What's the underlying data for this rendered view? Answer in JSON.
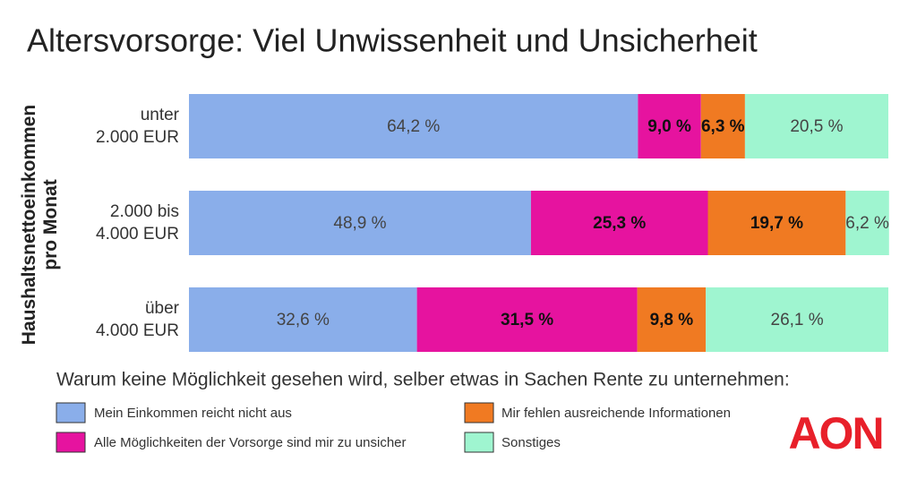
{
  "chart_data": {
    "type": "stacked-bar-horizontal",
    "title": "Altersvorsorge: Viel Unwissenheit und Unsicherheit",
    "y_label": "Haushaltsnettoeinkommen\npro Monat",
    "categories": [
      "unter\n2.000 EUR",
      "2.000 bis\n4.000 EUR",
      "über\n4.000 EUR"
    ],
    "xlim": [
      0,
      100
    ],
    "legend_title": "Warum keine Möglichkeit gesehen wird, selber etwas in Sachen Rente zu unternehmen:",
    "series": [
      {
        "name": "Mein Einkommen reicht nicht aus",
        "color": "#8aaeea",
        "bold": false,
        "values": [
          64.2,
          48.9,
          32.6
        ],
        "value_labels": [
          "64,2 %",
          "48,9 %",
          "32,6 %"
        ]
      },
      {
        "name": "Alle Möglichkeiten der Vorsorge sind mir zu unsicher",
        "color": "#e6139f",
        "bold": true,
        "values": [
          9.0,
          25.3,
          31.5
        ],
        "value_labels": [
          "9,0 %",
          "25,3 %",
          "31,5 %"
        ]
      },
      {
        "name": "Mir fehlen ausreichende Informationen",
        "color": "#f07a22",
        "bold": true,
        "values": [
          6.3,
          19.7,
          9.8
        ],
        "value_labels": [
          "6,3 %",
          "19,7 %",
          "9,8 %"
        ]
      },
      {
        "name": "Sonstiges",
        "color": "#9ff5d0",
        "bold": false,
        "values": [
          20.5,
          6.2,
          26.1
        ],
        "value_labels": [
          "20,5 %",
          "6,2 %",
          "26,1 %"
        ]
      }
    ],
    "logo": "AON"
  }
}
